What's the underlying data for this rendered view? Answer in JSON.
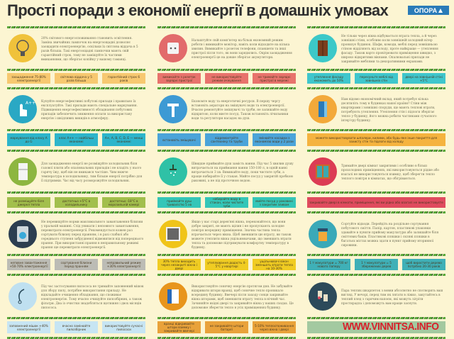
{
  "header": {
    "title": "Прості поради з економії енергії в домашніх умовах",
    "logo": "ОПОРА"
  },
  "watermark": "WWW.VINNITSA.INFO",
  "rows": [
    {
      "items": [
        {
          "icon": "lightbulb-icon",
          "circle": "#f0c23b",
          "chip_color": "#f7c870",
          "text": "20% світового енергоспоживання становить освітлення. Заміна звичайних лампочок на енергоощадні дозволяє заощадити електроенергію, оскільки їх світлова віддача в 5 разів більша. Такі енергоощадні лампочки мають свій гарантійний строк, тому не заміщуйте їх частими вмиканнями, що зберігає копійку у вашому гаманці.",
          "chips": [
            "заощадження 75-80% електроенергії",
            "світлова віддача у 5 разів більша",
            "гарантійний строк 6 років"
          ]
        },
        {
          "icon": "socket-icon",
          "circle": "#e26b6b",
          "chip_color": "#e8736c",
          "text": "Налаштуйте свій комп'ютер на більш економний режим роботи і вимикайте монітор, навіть коли відходите на кілька хвилин. Вимикайте з розеток телефони, планшети та інші пристрої після того, як вони зарядились. Окрім заощадження електроенергії це на довше зберігає акумулятори.",
          "chips": [
            "вимикайте з розеток зарядні пристрої",
            "не використовуйте режим очікування",
            "не тримайте зарядні пристрої в мережі"
          ]
        },
        {
          "icon": "wardrobe-icon",
          "circle": "#3cc8c8",
          "chip_color": "#3fc6cc",
          "text": "Не тільки через вікна відбувається втрата тепла, а й через зовнішні стіни, особливо коли зовнішній холодний вітер пронизує будинок. Шафи, комоди, меблі перед зовнішньою стіною відділяють від холоду, проте найкраще — утеплення фасаду. Також варто провітрювати приміщення швидко, з широко відкритими вікнами. Опалювальні прилади не закривайте меблями та декоративними екранами.",
          "chips": [
            "утеплення фасаду економить до 50%",
            "пересуньте меблі від зовнішніх стін",
            "двері на зовнішній стіні +5°C"
          ]
        }
      ]
    },
    {
      "items": [
        {
          "icon": "touch-hand-icon",
          "circle": "#2aa8c4",
          "chip_color": "#2db5cb",
          "text": "Купуйте енергоефективні побутові прилади і правильно їх експлуатуйте. Такі прилади мають спеціальне маркування. Підвищення енергоефективності обладнання побутових приладів забезпечить зниження оплати за використану енергію і шкідливих викидів в атмосферу.",
          "chips": [
            "маркування від класу A до G",
            "клас A++ — найбільш економні",
            "A+, A, B, C, D, E — менш економні"
          ]
        },
        {
          "icon": "sink-icon",
          "circle": "#3d9ad4",
          "chip_color": "#4ba4d9",
          "text": "Економте воду та енергетичні ресурси. В першу чергу встановіть аератори на змішувачі води та електроенергії. Вчасно ремонтуйте змішувачі та труби, не залишайте воду відкритою, коли миєте посуд. Також встановіть лічильники води та регулятори насадок на душ.",
          "chips": [
            "встановіть змішувачі",
            "відремонтуйте сантехніку та труби",
            "змінюйте насадки з економією води у 2 рази"
          ]
        },
        {
          "icon": "insulation-icon",
          "circle": "#f3a93a",
          "chip_color": "#f5b33f",
          "text": "Нам відомо економічний вклад, який потребує кілька десятиліть тому в будинках нашої країни? Стіни між квартирами і зовнішні споруди, що мають теплові втрати, потребують утеплення. Утеплення стін і підлоги зберігає тепло у будинку, його можна робити частинами сучасного інтер'єру будинку.",
          "chips": [
            "можете використовувати шпалери, килими, або будь-яке інше покриття для захисту стін та підлоги від холоду"
          ]
        }
      ]
    },
    {
      "items": [
        {
          "icon": "fridge-icon",
          "circle": "#8db640",
          "chip_color": "#a2bf4c",
          "text": "Для заощадження енергії не розміщуйте холодильник біля газової плити або опалювальних приладів і не кладіть у нього гарячу їжу, щоб він не вмикався частіше. Чим нижче температура в холодильнику, тим більше енергії потрібно для її підтримки. Час від часу розморожуйте холодильник.",
          "chips": [
            "не розміщуйте біля джерел тепла",
            "достатньо +5°C в холодильнику",
            "достатньо -18°C в морозильній камері"
          ]
        },
        {
          "icon": "shower-icon",
          "circle": "#2fc1a6",
          "chip_color": "#34c6b8",
          "text": "Швидше приймайте душ замість ванни. Під час 5 хвилин душу витрачається на приймання ванни 150-180 л, в одній ванні витрачається 3 хв. Вимикайте воду, поки чистите зуби, а краще набирайте її у стакан. Мийте посуд у закритій пробкою раковині, а не під проточною водою.",
          "chips": [
            "приймайте душ тривалістю 5 хв",
            "набирайте воду в стакан, коли чистите зуби",
            "мийте посуд у раковині з закритим зливом"
          ]
        },
        {
          "icon": "window-icon",
          "circle": "#dc3c54",
          "chip_color": "#e04b5e",
          "text": "Тримайте двері кімнат закритими і особливо в більш прохолодних приміщеннях, які використовуються рідше або взагалі не використовуються взимку, щоб зберегти тепло теплого повітря в кімнатах, що обігріваються.",
          "chips": [
            "закривайте двері в кімнати, приміщення, які ви рідко або взагалі не використовуєте"
          ]
        }
      ]
    },
    {
      "items": [
        {
          "icon": "washing-machine-icon",
          "circle": "#2c3e50",
          "chip_color": "#bcbcb5",
          "text": "Не перевищуйте норми максимального завантаження білизни у пральній машині. Слід уникати і неповного завантаження, перевитрати електроенергії. Рекомендується кожен раз сортувати білизну перед пранням, і в разі слабкої або середнього ступеня забрудненої відмовитися від попереднього прання. При використанні прання в неправильному режимі прання ще перевитрати електроенергії.",
          "chips": [
            "неповне завантаження +50-70% електроенергії",
            "сортування білизни перед пранням",
            "неправильний режим +30% електроенергії"
          ]
        },
        {
          "icon": "window-frame-icon",
          "circle": "#f0c419",
          "chip_color": "#f0cc22",
          "text": "Якщо у вас старі дерев'яні вікна, переконайтеся, що вони добре закриті, не мають щілин і не пропускають холодне повітря всередину приміщення. Значна частина тепла втрачається через вікна. Щоб зменшити цю втрату, ви також можете утеплити вікна ущільнювачами, що зменшить втрати тепла та допоможе підтримувати комфортну температуру в будинку.",
          "chips": [
            "30% тепла виходить через незакриті вікна і двері",
            "утеплювання додасть 4-5°C у квартирі",
            "ущільнювачі вікон зменшать втрати тепла на 10-30%"
          ]
        },
        {
          "icon": "recycle-bin-icon",
          "circle": "#3aa9b8",
          "chip_color": "#3fb0b7",
          "text": "Сортуйте відходи. Перейдіть на роздільне сортування побутового сміття. Папір, картон, пластикові упаковки здавайте в пункти прийому макулатури або залишайте біля сміттєвих баків. Пластикові пляшки і скляні пляшки в багатьох містах можна здати в пункт прийому вторинної сировини.",
          "chips": [
            "1 т макулатури = 700 кг нового паперу",
            "1 т макулатури = 5 збережених дерев",
            "щоб виростити дерево потрібно 20-30 років"
          ]
        }
      ]
    },
    {
      "items": [
        {
          "icon": "vacuum-cleaner-icon",
          "circle": "#bfe0f0",
          "chip_color": "#c7e5f3",
          "text": "Під час застосування пилососа не тримайте заповнений мішок для збору пилу, потрібне використання приладу. Не відкладайте очищення обладнання, що споживає електроенергію. Тому вчасно очищуйте пилозбірник, а також фільтри. Два із очистки знадобляться щотижня і двох місяців пилососа.",
          "chips": [
            "заповнений мішок +40% електроенергії",
            "вчасно замінюйте пилозбірник",
            "використовуйте сучасні пилососи"
          ]
        },
        {
          "icon": "curtains-icon",
          "circle": "#e8951c",
          "chip_color": "#e9a23a",
          "text": "Використовуйте сонячну енергію протягом дня. Не забувайте відкривати штори вранці, щоб сонячне тепло проникало всередину будинку. Ввечері після заходу сонця закривайте вікна шторами, щоб зменшити втрату тепла в нічний час. Зачиняйте вхідні двері та закривайте вікна у ваших сходах. Це допоможе зберегти тепло в усіх приміщеннях будинку.",
          "chips": [
            "вранці відкривайте штори взимку і закривайте ввечері",
            "не закривайте штори батареї",
            "5-10% теплоспоживання через вікна і двері"
          ]
        },
        {
          "icon": "socks-icon",
          "circle": "#2c4a5a",
          "chip_color": "#a3c9a0",
          "text": "Пара теплих шкарпеток з вовни абсолютно не спотворить ваш вигляд. У вечорі, перед тим як лягати в ліжко, закутайтесь в теплий плед з гарячим напоєм, які можуть зігріти простирадла і допоможуть вам краще заснути.",
          "chips": [
            ""
          ]
        }
      ]
    }
  ]
}
